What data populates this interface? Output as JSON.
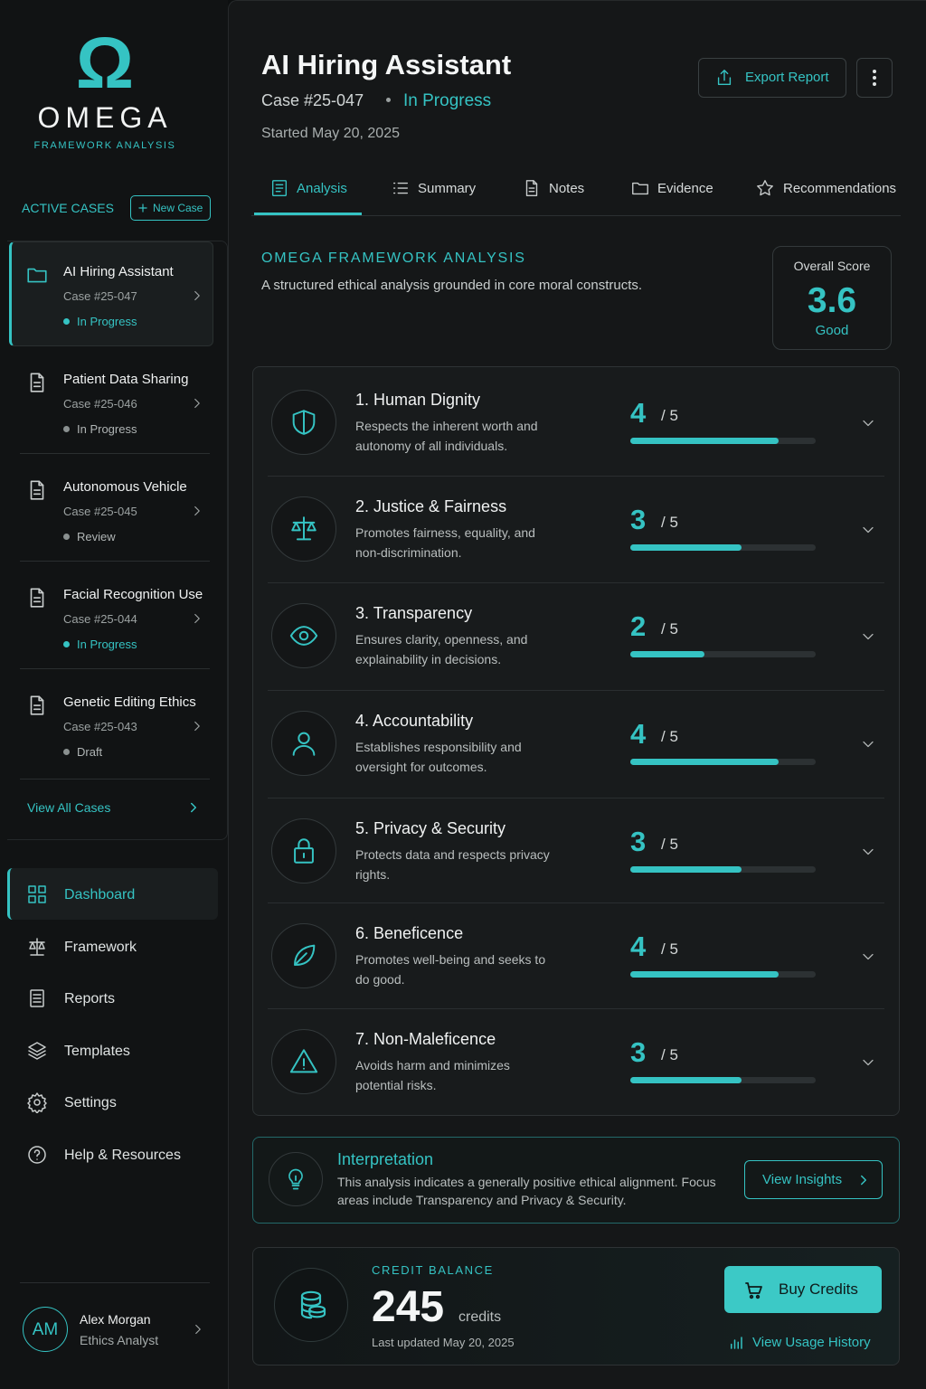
{
  "sidebar": {
    "logo": {
      "symbol": "Ω",
      "name": "OMEGA",
      "subtitle": "FRAMEWORK ANALYSIS"
    },
    "active_cases": {
      "title": "ACTIVE CASES",
      "new_case": "New Case"
    },
    "cases": [
      {
        "title": "AI Hiring Assistant",
        "case_id": "Case #25-047",
        "status": "In Progress",
        "status_color": "#35c3c3",
        "active": true
      },
      {
        "title": "Patient Data Sharing",
        "case_id": "Case #25-046",
        "status": "In Progress",
        "status_color": "#8a9090",
        "active": false
      },
      {
        "title": "Autonomous Vehicle",
        "case_id": "Case #25-045",
        "status": "Review",
        "status_color": "#8a9090",
        "active": false
      },
      {
        "title": "Facial Recognition Use",
        "case_id": "Case #25-044",
        "status": "In Progress",
        "status_color": "#35c3c3",
        "active": false
      },
      {
        "title": "Genetic Editing Ethics",
        "case_id": "Case #25-043",
        "status": "Draft",
        "status_color": "#8a9090",
        "active": false
      }
    ],
    "view_all": "View All Cases",
    "nav": [
      {
        "label": "Dashboard",
        "active": true
      },
      {
        "label": "Framework",
        "active": false
      },
      {
        "label": "Reports",
        "active": false
      },
      {
        "label": "Templates",
        "active": false
      },
      {
        "label": "Settings",
        "active": false
      },
      {
        "label": "Help & Resources",
        "active": false
      }
    ],
    "user": {
      "initials": "AM",
      "name": "Alex Morgan",
      "role": "Ethics Analyst"
    }
  },
  "header": {
    "title": "AI Hiring Assistant",
    "case_id": "Case #25-047",
    "status": "In Progress",
    "started": "Started May 20, 2025",
    "export": "Export Report"
  },
  "tabs": [
    {
      "label": "Analysis",
      "active": true
    },
    {
      "label": "Summary",
      "active": false
    },
    {
      "label": "Notes",
      "active": false
    },
    {
      "label": "Evidence",
      "active": false
    },
    {
      "label": "Recommendations",
      "active": false
    }
  ],
  "analysis": {
    "heading": "OMEGA FRAMEWORK ANALYSIS",
    "description": "A structured ethical analysis grounded in core moral constructs.",
    "overall": {
      "label": "Overall Score",
      "value": 3.6,
      "rating": "Good"
    },
    "criteria": [
      {
        "title": "1. Human Dignity",
        "description": "Respects the inherent worth and autonomy of all individuals.",
        "score": 4,
        "scale": {
          "value": 5,
          "label": "/ 5"
        }
      },
      {
        "title": "2. Justice & Fairness",
        "description": "Promotes fairness, equality, and non-discrimination.",
        "score": 3,
        "scale": {
          "value": 5,
          "label": "/ 5"
        }
      },
      {
        "title": "3. Transparency",
        "description": "Ensures clarity, openness, and explainability in decisions.",
        "score": 2,
        "scale": {
          "value": 5,
          "label": "/ 5"
        }
      },
      {
        "title": "4. Accountability",
        "description": "Establishes responsibility and oversight for outcomes.",
        "score": 4,
        "scale": {
          "value": 5,
          "label": "/ 5"
        }
      },
      {
        "title": "5. Privacy & Security",
        "description": "Protects data and respects privacy rights.",
        "score": 3,
        "scale": {
          "value": 5,
          "label": "/ 5"
        }
      },
      {
        "title": "6. Beneficence",
        "description": "Promotes well-being and seeks to do good.",
        "score": 4,
        "scale": {
          "value": 5,
          "label": "/ 5"
        }
      },
      {
        "title": "7. Non-Maleficence",
        "description": "Avoids harm and minimizes potential risks.",
        "score": 3,
        "scale": {
          "value": 5,
          "label": "/ 5"
        }
      }
    ]
  },
  "interpretation": {
    "title": "Interpretation",
    "text": "This analysis indicates a generally positive ethical alignment. Focus areas include Transparency and Privacy & Security.",
    "button": "View Insights"
  },
  "credits": {
    "label": "CREDIT BALANCE",
    "value": 245,
    "unit": "credits",
    "updated": "Last updated May 20, 2025",
    "buy": "Buy Credits",
    "history": "View Usage History"
  }
}
